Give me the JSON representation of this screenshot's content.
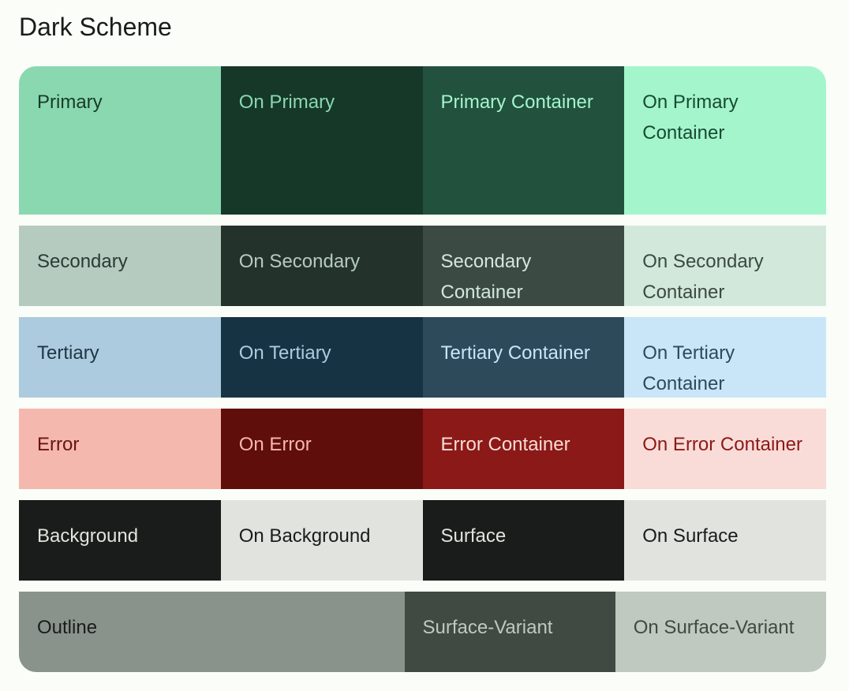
{
  "title": "Dark Scheme",
  "rows": [
    {
      "height": 188,
      "cells": [
        {
          "label": "Primary",
          "bg": "#89d8b0",
          "fg": "#1a3a2b"
        },
        {
          "label": "On Primary",
          "bg": "#163828",
          "fg": "#89d8b0"
        },
        {
          "label": "Primary Container",
          "bg": "#22513e",
          "fg": "#a4f5cb"
        },
        {
          "label": "On Primary Container",
          "bg": "#a4f5cb",
          "fg": "#184a34"
        }
      ]
    },
    {
      "height": 102,
      "cells": [
        {
          "label": "Secondary",
          "bg": "#b6cbbf",
          "fg": "#2b3a33"
        },
        {
          "label": "On Secondary",
          "bg": "#23332b",
          "fg": "#b6cbbf"
        },
        {
          "label": "Secondary Container",
          "bg": "#3b4a42",
          "fg": "#d2e8db"
        },
        {
          "label": "On Secondary Container",
          "bg": "#d2e8db",
          "fg": "#3b4a42"
        }
      ]
    },
    {
      "height": 102,
      "cells": [
        {
          "label": "Tertiary",
          "bg": "#accbde",
          "fg": "#1e3546"
        },
        {
          "label": "On Tertiary",
          "bg": "#163343",
          "fg": "#accbde"
        },
        {
          "label": "Tertiary Container",
          "bg": "#2d4a5b",
          "fg": "#c8e6f8"
        },
        {
          "label": "On Tertiary Container",
          "bg": "#c8e6f8",
          "fg": "#2d4a5b"
        }
      ]
    },
    {
      "height": 102,
      "cells": [
        {
          "label": "Error",
          "bg": "#f4b8ae",
          "fg": "#6a1410"
        },
        {
          "label": "On Error",
          "bg": "#5f0e0c",
          "fg": "#f4b8ae"
        },
        {
          "label": "Error Container",
          "bg": "#8b1917",
          "fg": "#f9dcd7"
        },
        {
          "label": "On Error Container",
          "bg": "#f9dcd7",
          "fg": "#8b1917"
        }
      ]
    },
    {
      "height": 102,
      "cells": [
        {
          "label": "Background",
          "bg": "#191c1a",
          "fg": "#e1e3de"
        },
        {
          "label": "On Background",
          "bg": "#e1e3de",
          "fg": "#191c1a"
        },
        {
          "label": "Surface",
          "bg": "#191c1a",
          "fg": "#e1e3de"
        },
        {
          "label": "On Surface",
          "bg": "#e1e3de",
          "fg": "#191c1a"
        }
      ]
    },
    {
      "height": 102,
      "cells": [
        {
          "label": "Outline",
          "bg": "#8a938b",
          "fg": "#191c1a",
          "span": 2
        },
        {
          "label": "Surface-Variant",
          "bg": "#404942",
          "fg": "#bfc9c0"
        },
        {
          "label": "On Surface-Variant",
          "bg": "#bfc9c0",
          "fg": "#404942"
        }
      ]
    }
  ]
}
